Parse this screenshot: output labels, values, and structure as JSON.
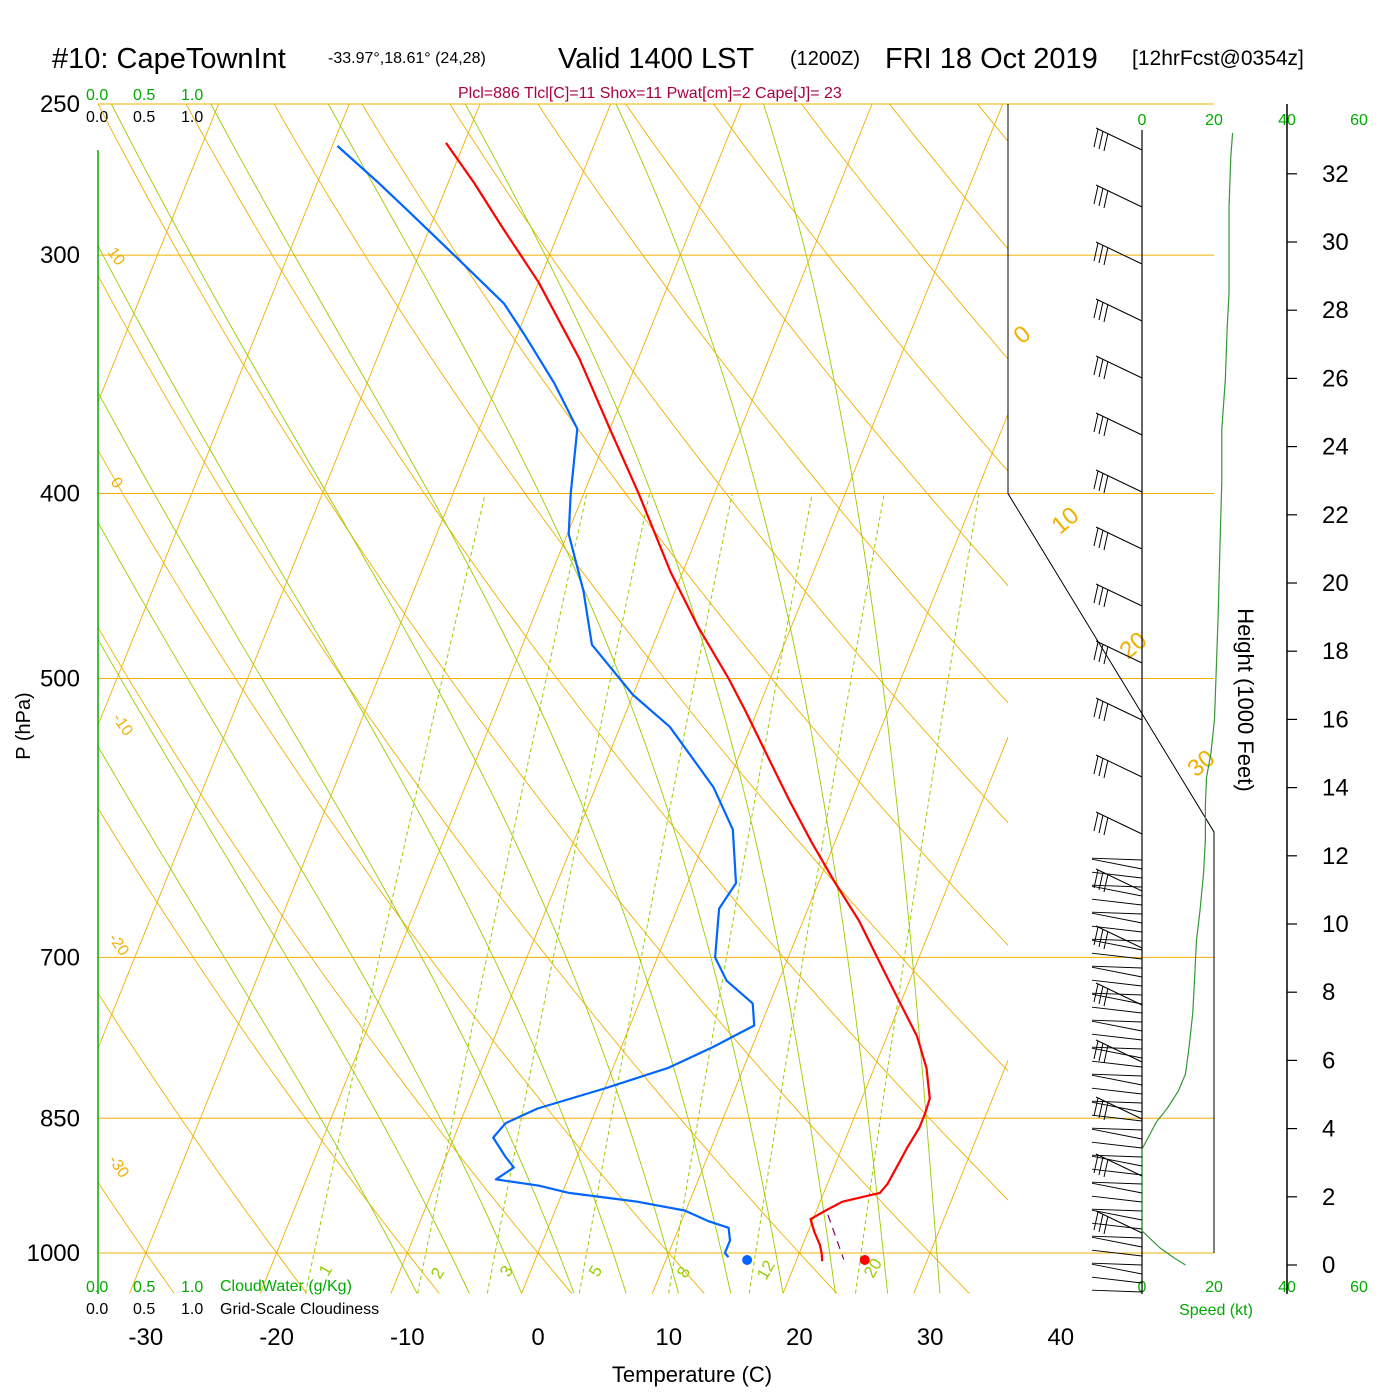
{
  "header": {
    "station": "#10: CapeTownInt",
    "location": "-33.97°,18.61° (24,28)",
    "valid": "Valid 1400 LST",
    "utc": "(1200Z)",
    "date": "FRI 18 Oct 2019",
    "forecast": "[12hrFcst@0354z]",
    "indices": "Plcl=886 Tlcl[C]=11 Shox=11 Pwat[cm]=2 Cape[J]= 23"
  },
  "colors": {
    "temperature": "#ff0000",
    "dewpoint": "#0066ff",
    "isobar": "#f0b000",
    "dry_adiabat": "#f0b000",
    "moist_adiabat": "#99cc00",
    "mixing_ratio": "#99cc00",
    "green_text": "#00aa00",
    "indices_text": "#aa0044",
    "wind_speed": "#339933"
  },
  "chart_data": {
    "type": "line",
    "xlabel": "Temperature (C)",
    "ylabel": "P (hPa)",
    "y2label": "Height (1000 Feet)",
    "x_ticks": [
      -30,
      -20,
      -10,
      0,
      10,
      20,
      30,
      40
    ],
    "p_ticks": [
      250,
      300,
      400,
      500,
      700,
      850,
      1000
    ],
    "height_ticks": [
      0,
      2,
      4,
      6,
      8,
      10,
      12,
      14,
      16,
      18,
      20,
      22,
      24,
      26,
      28,
      30,
      32
    ],
    "dry_adiabat_labels": [
      "10",
      "0",
      "-10",
      "-20",
      "-30",
      "0",
      "10",
      "20",
      "30"
    ],
    "mixing_ratio_labels": [
      "1",
      "2",
      "3",
      "5",
      "8",
      "12",
      "20"
    ],
    "series": [
      {
        "name": "",
        "quantity": "temperature",
        "points": [
          [
            1010,
            22.0
          ],
          [
            1000,
            21.7
          ],
          [
            990,
            21.3
          ],
          [
            975,
            20.5
          ],
          [
            960,
            19.8
          ],
          [
            950,
            20.7
          ],
          [
            940,
            21.7
          ],
          [
            930,
            24.3
          ],
          [
            920,
            24.6
          ],
          [
            900,
            24.8
          ],
          [
            880,
            25.0
          ],
          [
            860,
            25.3
          ],
          [
            845,
            25.3
          ],
          [
            830,
            25.2
          ],
          [
            800,
            24.0
          ],
          [
            770,
            22.3
          ],
          [
            740,
            20.0
          ],
          [
            700,
            16.8
          ],
          [
            670,
            14.3
          ],
          [
            640,
            11.3
          ],
          [
            610,
            8.3
          ],
          [
            580,
            5.3
          ],
          [
            560,
            3.3
          ],
          [
            520,
            -0.9
          ],
          [
            500,
            -3.2
          ],
          [
            470,
            -7.1
          ],
          [
            440,
            -10.9
          ],
          [
            400,
            -15.8
          ],
          [
            370,
            -20.0
          ],
          [
            340,
            -24.5
          ],
          [
            310,
            -30.0
          ],
          [
            290,
            -34.5
          ],
          [
            275,
            -38.0
          ],
          [
            262,
            -41.4
          ]
        ]
      },
      {
        "name": "",
        "quantity": "dewpoint",
        "points": [
          [
            1005,
            14.7
          ],
          [
            1000,
            14.3
          ],
          [
            985,
            14.3
          ],
          [
            970,
            13.8
          ],
          [
            962,
            12.0
          ],
          [
            950,
            9.9
          ],
          [
            940,
            6.0
          ],
          [
            930,
            0.5
          ],
          [
            922,
            -2.0
          ],
          [
            915,
            -5.5
          ],
          [
            902,
            -4.5
          ],
          [
            890,
            -5.5
          ],
          [
            870,
            -7.0
          ],
          [
            855,
            -6.5
          ],
          [
            840,
            -4.5
          ],
          [
            820,
            0.0
          ],
          [
            800,
            4.2
          ],
          [
            780,
            7.0
          ],
          [
            760,
            9.5
          ],
          [
            740,
            8.7
          ],
          [
            720,
            6.0
          ],
          [
            700,
            4.4
          ],
          [
            660,
            3.2
          ],
          [
            640,
            3.7
          ],
          [
            600,
            1.8
          ],
          [
            570,
            -1.0
          ],
          [
            530,
            -6.2
          ],
          [
            510,
            -10.0
          ],
          [
            480,
            -14.7
          ],
          [
            450,
            -17.0
          ],
          [
            420,
            -19.9
          ],
          [
            400,
            -21.0
          ],
          [
            370,
            -22.5
          ],
          [
            350,
            -25.7
          ],
          [
            330,
            -29.5
          ],
          [
            318,
            -32.0
          ],
          [
            300,
            -37.3
          ],
          [
            285,
            -42.0
          ],
          [
            275,
            -45.3
          ],
          [
            263,
            -49.6
          ]
        ]
      }
    ],
    "surface_points": [
      {
        "quantity": "temperature",
        "value": 25
      },
      {
        "quantity": "dewpoint",
        "value": 16
      }
    ],
    "wind_speed_profile": [
      [
        0,
        12
      ],
      [
        0.2,
        9
      ],
      [
        0.5,
        5
      ],
      [
        1.0,
        0
      ],
      [
        2.0,
        0
      ],
      [
        2.7,
        0
      ],
      [
        3.4,
        0
      ],
      [
        3.8,
        2
      ],
      [
        4.2,
        4
      ],
      [
        4.6,
        7
      ],
      [
        5.1,
        10
      ],
      [
        5.6,
        12
      ],
      [
        6.4,
        13
      ],
      [
        7.4,
        14
      ],
      [
        8.4,
        14.5
      ],
      [
        9.5,
        15
      ],
      [
        10.4,
        16
      ],
      [
        11.5,
        17
      ],
      [
        12.5,
        17.5
      ],
      [
        13.5,
        17.5
      ],
      [
        14.3,
        17.8
      ],
      [
        15.0,
        19
      ],
      [
        16.0,
        20
      ],
      [
        17.5,
        20.5
      ],
      [
        19.0,
        21
      ],
      [
        21.0,
        21.5
      ],
      [
        23.0,
        22
      ],
      [
        24.5,
        22
      ],
      [
        26.0,
        23
      ],
      [
        27.5,
        23.5
      ],
      [
        28.5,
        24
      ],
      [
        29.5,
        24
      ],
      [
        30.0,
        24
      ],
      [
        31.0,
        24
      ],
      [
        32.5,
        24.5
      ],
      [
        33.2,
        25
      ]
    ]
  },
  "axes_labels": {
    "top_green_ticks": [
      "0.0",
      "0.5",
      "1.0"
    ],
    "top_black_ticks": [
      "0.0",
      "0.5",
      "1.0"
    ],
    "bottom_green_ticks": [
      "0.0",
      "0.5",
      "1.0"
    ],
    "bottom_black_ticks": [
      "0.0",
      "0.5",
      "1.0"
    ],
    "cloudwater_label": "CloudWater (g/Kg)",
    "cloudiness_label": "Grid-Scale Cloudiness",
    "speed_ticks": [
      "0",
      "20",
      "40",
      "60"
    ],
    "speed_label": "Speed (kt)"
  }
}
